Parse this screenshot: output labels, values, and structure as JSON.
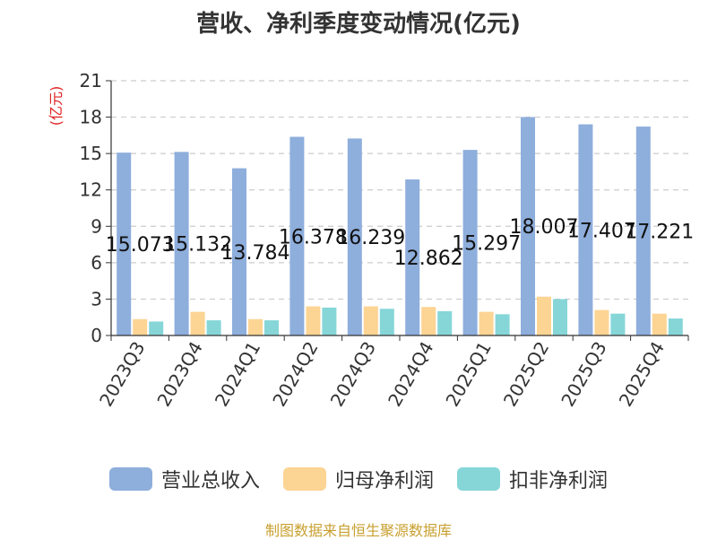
{
  "chart_data": {
    "type": "bar",
    "title": "营收、净利季度变动情况(亿元)",
    "ylabel": "(亿元)",
    "xlabel": "",
    "ylim": [
      0,
      21
    ],
    "yticks": [
      0,
      3,
      6,
      9,
      12,
      15,
      18,
      21
    ],
    "grid": true,
    "legend_position": "bottom",
    "categories": [
      "2023Q3",
      "2023Q4",
      "2024Q1",
      "2024Q2",
      "2024Q3",
      "2024Q4",
      "2025Q1",
      "2025Q2",
      "2025Q3",
      "2025Q4"
    ],
    "series": [
      {
        "name": "营业总收入",
        "color": "#8eaedc",
        "values": [
          15.073,
          15.132,
          13.784,
          16.378,
          16.239,
          12.862,
          15.297,
          18.007,
          17.407,
          17.221
        ],
        "labels": [
          "15.073",
          "15.132",
          "13.784",
          "16.378",
          "16.239",
          "12.862",
          "15.297",
          "18.007",
          "17.407",
          "17.221"
        ]
      },
      {
        "name": "归母净利润",
        "color": "#fcd494",
        "values": [
          1.35,
          1.95,
          1.35,
          2.4,
          2.4,
          2.35,
          1.95,
          3.2,
          2.1,
          1.8
        ]
      },
      {
        "name": "扣非净利润",
        "color": "#86d6d8",
        "values": [
          1.15,
          1.25,
          1.25,
          2.3,
          2.2,
          2.0,
          1.75,
          3.0,
          1.8,
          1.4
        ]
      }
    ]
  },
  "source_text": "制图数据来自恒生聚源数据库"
}
